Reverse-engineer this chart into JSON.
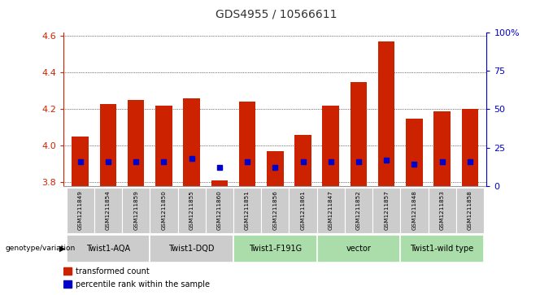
{
  "title": "GDS4955 / 10566611",
  "samples": [
    "GSM1211849",
    "GSM1211854",
    "GSM1211859",
    "GSM1211850",
    "GSM1211855",
    "GSM1211860",
    "GSM1211851",
    "GSM1211856",
    "GSM1211861",
    "GSM1211847",
    "GSM1211852",
    "GSM1211857",
    "GSM1211848",
    "GSM1211853",
    "GSM1211858"
  ],
  "bar_values": [
    4.05,
    4.23,
    4.25,
    4.22,
    4.26,
    3.81,
    4.24,
    3.97,
    4.06,
    4.22,
    4.35,
    4.57,
    4.15,
    4.19,
    4.2
  ],
  "percentile_values": [
    3.91,
    3.91,
    3.91,
    3.91,
    3.93,
    3.88,
    3.91,
    3.88,
    3.91,
    3.91,
    3.91,
    3.92,
    3.9,
    3.91,
    3.91
  ],
  "ylim": [
    3.78,
    4.62
  ],
  "y_ticks": [
    3.8,
    4.0,
    4.2,
    4.4,
    4.6
  ],
  "y2_ticks": [
    0,
    25,
    50,
    75,
    100
  ],
  "groups": [
    {
      "label": "Twist1-AQA",
      "start": 0,
      "end": 3,
      "color": "#cccccc"
    },
    {
      "label": "Twist1-DQD",
      "start": 3,
      "end": 6,
      "color": "#cccccc"
    },
    {
      "label": "Twist1-F191G",
      "start": 6,
      "end": 9,
      "color": "#aaddaa"
    },
    {
      "label": "vector",
      "start": 9,
      "end": 12,
      "color": "#aaddaa"
    },
    {
      "label": "Twist1-wild type",
      "start": 12,
      "end": 15,
      "color": "#aaddaa"
    }
  ],
  "bar_color": "#cc2200",
  "dot_color": "#0000cc",
  "sample_bg": "#cccccc",
  "title_color": "#333333",
  "left_axis_color": "#cc2200",
  "right_axis_color": "#0000cc"
}
